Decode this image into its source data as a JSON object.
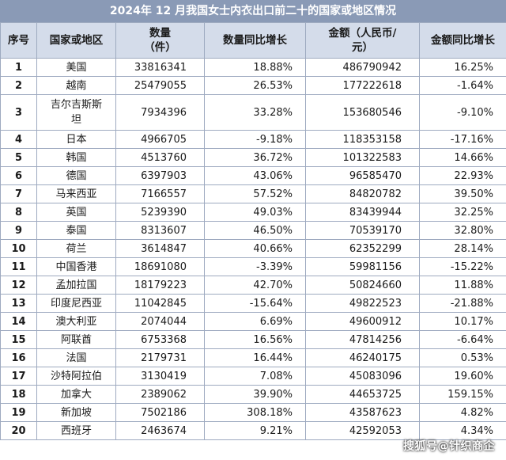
{
  "title": "2024年 12 月我国女士内衣出口前二十的国家或地区情况",
  "headers": {
    "index": "序号",
    "region": "国家或地区",
    "qty_line1": "数量",
    "qty_line2": "（件）",
    "qty_growth": "数量同比增长",
    "amount_line1": "金额（人民币/",
    "amount_line2": "元）",
    "amount_growth": "金额同比增长"
  },
  "rows": [
    {
      "index": "1",
      "region": "美国",
      "qty": "33816341",
      "qty_growth": "18.88%",
      "amount": "486790942",
      "amount_growth": "16.25%"
    },
    {
      "index": "2",
      "region": "越南",
      "qty": "25479055",
      "qty_growth": "26.53%",
      "amount": "177222618",
      "amount_growth": "-1.64%"
    },
    {
      "index": "3",
      "region_line1": "吉尔吉斯斯",
      "region_line2": "坦",
      "qty": "7934396",
      "qty_growth": "33.28%",
      "amount": "153680546",
      "amount_growth": "-9.10%"
    },
    {
      "index": "4",
      "region": "日本",
      "qty": "4966705",
      "qty_growth": "-9.18%",
      "amount": "118353158",
      "amount_growth": "-17.16%"
    },
    {
      "index": "5",
      "region": "韩国",
      "qty": "4513760",
      "qty_growth": "36.72%",
      "amount": "101322583",
      "amount_growth": "14.66%"
    },
    {
      "index": "6",
      "region": "德国",
      "qty": "6397903",
      "qty_growth": "43.06%",
      "amount": "96585470",
      "amount_growth": "22.93%"
    },
    {
      "index": "7",
      "region": "马来西亚",
      "qty": "7166557",
      "qty_growth": "57.52%",
      "amount": "84820782",
      "amount_growth": "39.50%"
    },
    {
      "index": "8",
      "region": "英国",
      "qty": "5239390",
      "qty_growth": "49.03%",
      "amount": "83439944",
      "amount_growth": "32.25%"
    },
    {
      "index": "9",
      "region": "泰国",
      "qty": "8313607",
      "qty_growth": "46.50%",
      "amount": "70539170",
      "amount_growth": "32.80%"
    },
    {
      "index": "10",
      "region": "荷兰",
      "qty": "3614847",
      "qty_growth": "40.66%",
      "amount": "62352299",
      "amount_growth": "28.14%"
    },
    {
      "index": "11",
      "region": "中国香港",
      "qty": "18691080",
      "qty_growth": "-3.39%",
      "amount": "59981156",
      "amount_growth": "-15.22%"
    },
    {
      "index": "12",
      "region": "孟加拉国",
      "qty": "18179223",
      "qty_growth": "42.70%",
      "amount": "50824660",
      "amount_growth": "11.88%"
    },
    {
      "index": "13",
      "region": "印度尼西亚",
      "qty": "11042845",
      "qty_growth": "-15.64%",
      "amount": "49822523",
      "amount_growth": "-21.88%"
    },
    {
      "index": "14",
      "region": "澳大利亚",
      "qty": "2074044",
      "qty_growth": "6.69%",
      "amount": "49600912",
      "amount_growth": "10.17%"
    },
    {
      "index": "15",
      "region": "阿联酋",
      "qty": "6753368",
      "qty_growth": "16.56%",
      "amount": "47814256",
      "amount_growth": "-6.64%"
    },
    {
      "index": "16",
      "region": "法国",
      "qty": "2179731",
      "qty_growth": "16.44%",
      "amount": "46240175",
      "amount_growth": "0.53%"
    },
    {
      "index": "17",
      "region": "沙特阿拉伯",
      "qty": "3130419",
      "qty_growth": "7.08%",
      "amount": "45083096",
      "amount_growth": "19.60%"
    },
    {
      "index": "18",
      "region": "加拿大",
      "qty": "2389062",
      "qty_growth": "39.90%",
      "amount": "44653725",
      "amount_growth": "159.15%"
    },
    {
      "index": "19",
      "region": "新加坡",
      "qty": "7502186",
      "qty_growth": "308.18%",
      "amount": "43587623",
      "amount_growth": "4.82%"
    },
    {
      "index": "20",
      "region": "西班牙",
      "qty": "2463674",
      "qty_growth": "9.21%",
      "amount": "42592053",
      "amount_growth": "4.34%"
    }
  ],
  "watermark": "搜狐号@针织商企"
}
